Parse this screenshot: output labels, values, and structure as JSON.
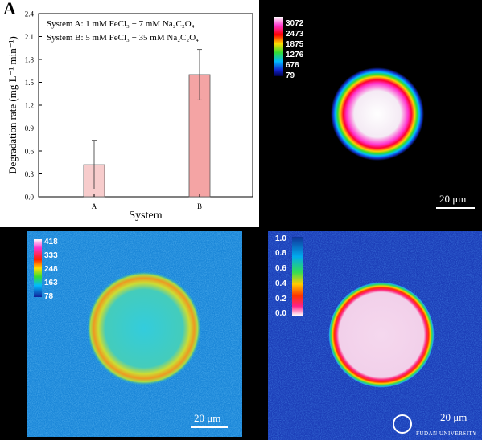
{
  "chart_data": {
    "type": "bar",
    "panel_label": "A",
    "categories": [
      "A",
      "B"
    ],
    "values": [
      0.42,
      1.6
    ],
    "errors": [
      0.32,
      0.33
    ],
    "xlabel": "System",
    "ylabel": "Degradation rate (mg L⁻¹ min⁻¹)",
    "ylim": [
      0,
      2.4
    ],
    "yticks": [
      "0.0",
      "0.3",
      "0.6",
      "0.9",
      "1.2",
      "1.5",
      "1.8",
      "2.1",
      "2.4"
    ],
    "legend_lines": [
      "System A: 1 mM FeCl₃ + 7 mM Na₂C₂O₄",
      "System B: 5 mM FeCl₃ + 35 mM Na₂C₂O₄"
    ],
    "bar_colors": [
      "#f7cccc",
      "#f4a4a4"
    ]
  },
  "images": {
    "top_right": {
      "colorbar_labels": [
        "3072",
        "2473",
        "1875",
        "1276",
        "678",
        "79"
      ],
      "scale_text": "20 μm"
    },
    "bottom_left": {
      "colorbar_labels": [
        "418",
        "333",
        "248",
        "163",
        "78"
      ],
      "scale_text": "20 μm"
    },
    "bottom_right": {
      "colorbar_labels": [
        "1.0",
        "0.8",
        "0.6",
        "0.4",
        "0.2",
        "0.0"
      ],
      "scale_text": "20 μm",
      "watermark_text": "FUDAN UNIVERSITY"
    }
  }
}
